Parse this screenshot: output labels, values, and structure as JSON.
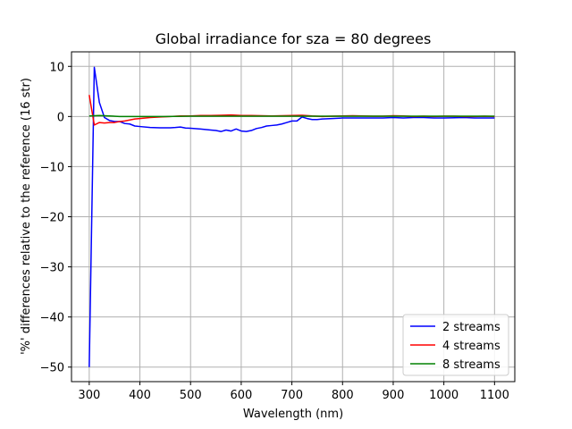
{
  "chart_data": {
    "type": "line",
    "title": "Global irradiance for sza = 80 degrees",
    "xlabel": "Wavelength (nm)",
    "ylabel": "'%' differences relative to the reference (16 str)",
    "xlim": [
      265,
      1140
    ],
    "ylim": [
      -52.9,
      12.9
    ],
    "xticks": [
      300,
      400,
      500,
      600,
      700,
      800,
      900,
      1000,
      1100
    ],
    "yticks": [
      -50,
      -40,
      -30,
      -20,
      -10,
      0,
      10
    ],
    "grid": true,
    "legend_position": "lower-right",
    "series": [
      {
        "name": "2 streams",
        "color": "#0000ff",
        "x": [
          300,
          310,
          320,
          330,
          340,
          350,
          360,
          370,
          380,
          390,
          400,
          420,
          440,
          460,
          470,
          480,
          490,
          500,
          520,
          540,
          550,
          560,
          570,
          580,
          590,
          600,
          610,
          620,
          630,
          640,
          650,
          660,
          670,
          680,
          690,
          700,
          710,
          720,
          730,
          740,
          750,
          760,
          780,
          800,
          820,
          840,
          860,
          880,
          900,
          920,
          940,
          960,
          980,
          1000,
          1040,
          1060,
          1080,
          1100
        ],
        "y": [
          -50,
          9.8,
          2.8,
          -0.2,
          -0.8,
          -1.0,
          -1.0,
          -1.4,
          -1.5,
          -1.9,
          -2.0,
          -2.2,
          -2.25,
          -2.25,
          -2.2,
          -2.1,
          -2.3,
          -2.35,
          -2.5,
          -2.7,
          -2.8,
          -3.0,
          -2.7,
          -2.9,
          -2.5,
          -2.9,
          -3.0,
          -2.8,
          -2.4,
          -2.2,
          -1.9,
          -1.8,
          -1.7,
          -1.5,
          -1.2,
          -0.9,
          -0.9,
          -0.1,
          -0.4,
          -0.6,
          -0.6,
          -0.5,
          -0.4,
          -0.3,
          -0.3,
          -0.3,
          -0.3,
          -0.3,
          -0.2,
          -0.3,
          -0.2,
          -0.2,
          -0.3,
          -0.3,
          -0.2,
          -0.3,
          -0.3,
          -0.3
        ]
      },
      {
        "name": "4 streams",
        "color": "#ff0000",
        "x": [
          300,
          310,
          320,
          330,
          340,
          350,
          360,
          370,
          380,
          390,
          400,
          420,
          440,
          460,
          480,
          500,
          520,
          540,
          560,
          580,
          600,
          620,
          640,
          660,
          680,
          700,
          720,
          740,
          760,
          780,
          800,
          820,
          840,
          860,
          880,
          900,
          920,
          940,
          960,
          980,
          1000,
          1020,
          1040,
          1060,
          1080,
          1100
        ],
        "y": [
          4.3,
          -1.7,
          -1.2,
          -1.3,
          -1.2,
          -1.2,
          -1.0,
          -0.9,
          -0.7,
          -0.5,
          -0.4,
          -0.2,
          -0.1,
          0.0,
          0.1,
          0.1,
          0.2,
          0.2,
          0.25,
          0.3,
          0.2,
          0.2,
          0.15,
          0.1,
          0.15,
          0.2,
          0.25,
          0.1,
          0.0,
          0.05,
          0.1,
          0.15,
          0.1,
          0.05,
          0.05,
          0.15,
          0.1,
          0.0,
          0.05,
          0.0,
          0.05,
          0.05,
          0.0,
          0.0,
          0.05,
          0.0
        ]
      },
      {
        "name": "8 streams",
        "color": "#008000",
        "x": [
          300,
          320,
          340,
          360,
          380,
          400,
          450,
          500,
          550,
          600,
          650,
          700,
          750,
          800,
          850,
          900,
          950,
          1000,
          1050,
          1100
        ],
        "y": [
          0.1,
          0.2,
          0.1,
          0.0,
          0.0,
          0.0,
          0.0,
          0.05,
          0.05,
          0.05,
          0.05,
          0.05,
          0.05,
          0.05,
          0.05,
          0.05,
          0.05,
          0.05,
          0.05,
          0.05
        ]
      }
    ]
  }
}
